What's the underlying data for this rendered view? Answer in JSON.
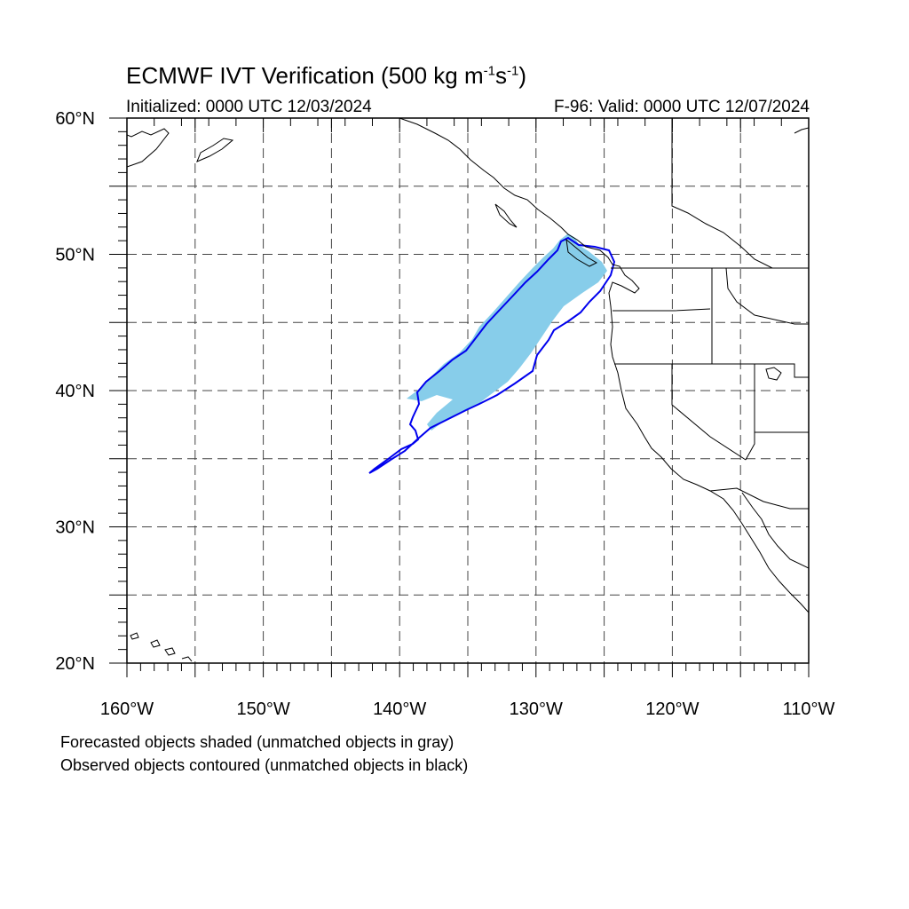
{
  "title": {
    "main": "ECMWF IVT Verification (500 kg m",
    "exp1": "-1",
    "mid": "s",
    "exp2": "-1",
    "end": ")"
  },
  "initialized": "Initialized: 0000 UTC 12/03/2024",
  "valid": "F-96: Valid: 0000 UTC 12/07/2024",
  "lat_labels": [
    "20°N",
    "30°N",
    "40°N",
    "50°N",
    "60°N"
  ],
  "lon_labels": [
    "160°W",
    "150°W",
    "140°W",
    "130°W",
    "120°W",
    "110°W"
  ],
  "map": {
    "lon_range": [
      -160,
      -110
    ],
    "lat_range": [
      20,
      60
    ],
    "grid_spacing_deg": 5,
    "forecast_color": "#87cdea",
    "observed_color": "#0000ee"
  },
  "legend": {
    "line1": "Forecasted objects shaded (unmatched objects in gray)",
    "line2": "Observed objects contoured (unmatched objects in black)"
  }
}
